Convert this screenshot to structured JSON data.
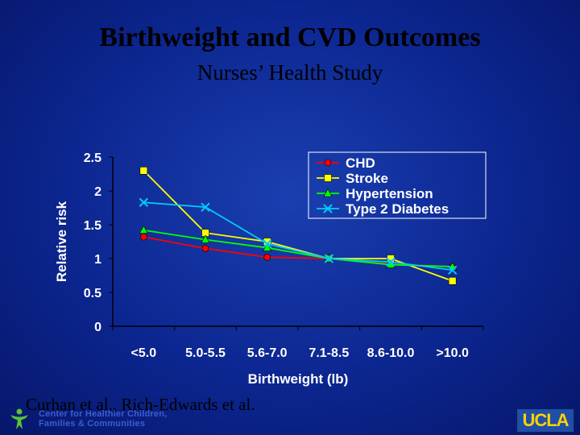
{
  "slide": {
    "title": "Birthweight and CVD Outcomes",
    "subtitle": "Nurses’ Health Study",
    "citation": "Curhan et al., Rich-Edwards et al.",
    "org_text": "Center for Healthier Children, Families & Communities",
    "org_line1": "Center for Healthier Children,",
    "org_line2": "Families & Communities",
    "logo_text": "UCLA"
  },
  "chart_data": {
    "type": "line",
    "title": "",
    "xlabel": "Birthweight (lb)",
    "ylabel": "Relative risk",
    "categories": [
      "<5.0",
      "5.0-5.5",
      "5.6-7.0",
      "7.1-8.5",
      "8.6-10.0",
      ">10.0"
    ],
    "ylim": [
      0,
      2.5
    ],
    "yticks": [
      "0",
      "0.5",
      "1",
      "1.5",
      "2",
      "2.5"
    ],
    "grid": false,
    "legend_position": "top-right",
    "series": [
      {
        "name": "CHD",
        "color": "#ff0000",
        "marker": "circle",
        "values": [
          1.32,
          1.15,
          1.02,
          1.0,
          0.92,
          0.88
        ]
      },
      {
        "name": "Stroke",
        "color": "#ffff00",
        "marker": "square",
        "values": [
          2.3,
          1.38,
          1.25,
          1.0,
          1.0,
          0.67
        ]
      },
      {
        "name": "Hypertension",
        "color": "#00ff00",
        "marker": "triangle",
        "values": [
          1.42,
          1.28,
          1.16,
          1.0,
          0.91,
          0.88
        ]
      },
      {
        "name": "Type 2 Diabetes",
        "color": "#00ccff",
        "marker": "x",
        "values": [
          1.83,
          1.76,
          1.22,
          1.0,
          0.95,
          0.83
        ]
      }
    ]
  }
}
